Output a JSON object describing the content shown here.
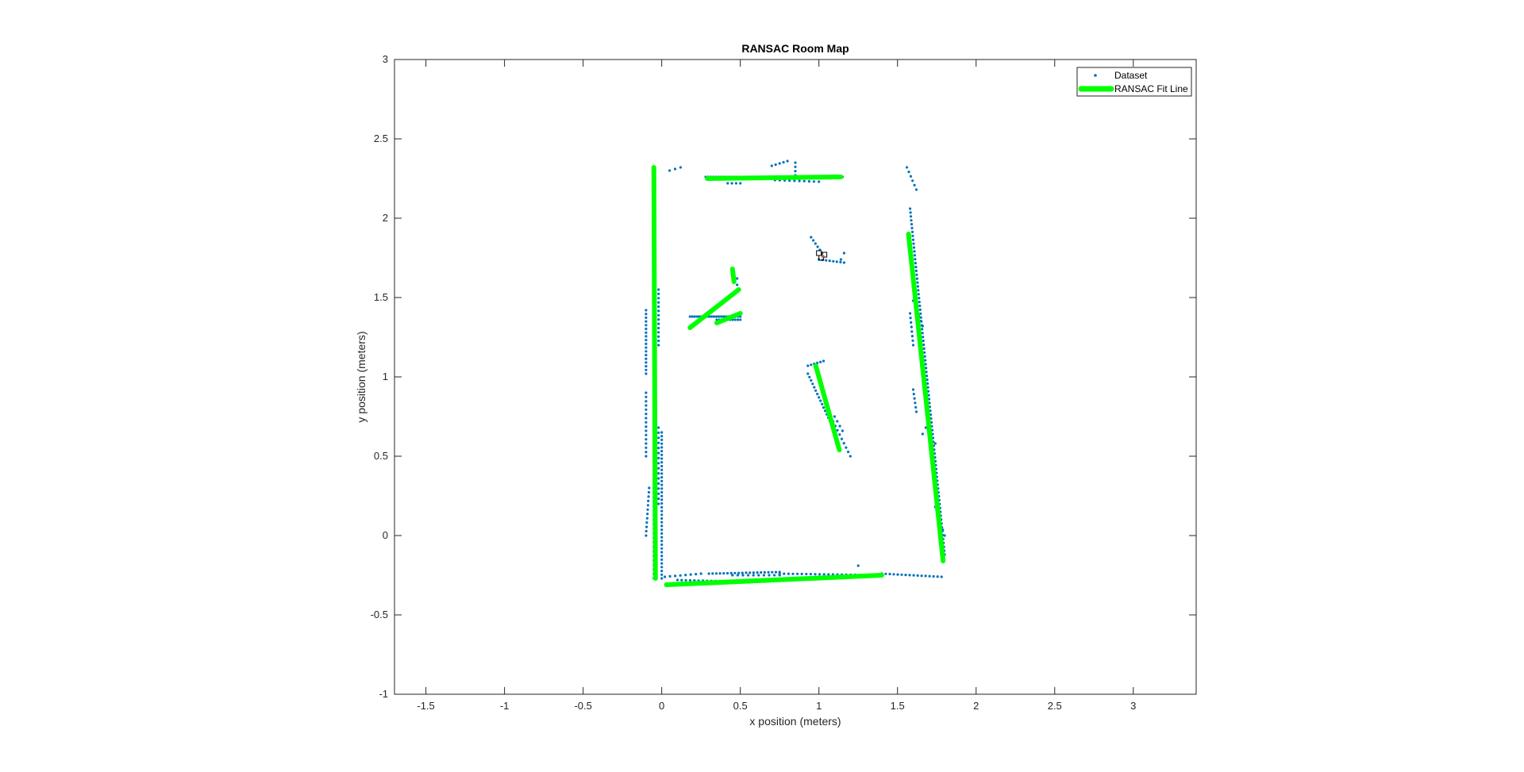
{
  "chart_data": {
    "type": "scatter",
    "title": "RANSAC Room Map",
    "xlabel": "x position (meters)",
    "ylabel": "y position (meters)",
    "xlim": [
      -1.7,
      3.4
    ],
    "ylim": [
      -1,
      3
    ],
    "xticks": [
      -1.5,
      -1,
      -0.5,
      0,
      0.5,
      1,
      1.5,
      2,
      2.5,
      3
    ],
    "yticks": [
      -1,
      -0.5,
      0,
      0.5,
      1,
      1.5,
      2,
      2.5,
      3
    ],
    "xtick_labels": [
      "-1.5",
      "-1",
      "-0.5",
      "0",
      "0.5",
      "1",
      "1.5",
      "2",
      "2.5",
      "3"
    ],
    "ytick_labels": [
      "-1",
      "-0.5",
      "0",
      "0.5",
      "1",
      "1.5",
      "2",
      "2.5",
      "3"
    ],
    "grid": false,
    "legend_position": "top-right",
    "legend": [
      "Dataset",
      "RANSAC Fit Line"
    ],
    "colors": {
      "dataset": "#0072BD",
      "fit_line": "#00FF00",
      "robot": "#000000"
    },
    "dataset_segments": [
      {
        "from": [
          -0.05,
          2.26
        ],
        "to": [
          -0.05,
          -0.27
        ],
        "n": 90
      },
      {
        "from": [
          -0.1,
          1.42
        ],
        "to": [
          -0.1,
          1.02
        ],
        "n": 18
      },
      {
        "from": [
          -0.1,
          0.9
        ],
        "to": [
          -0.1,
          0.5
        ],
        "n": 16
      },
      {
        "from": [
          -0.08,
          0.3
        ],
        "to": [
          -0.1,
          0.0
        ],
        "n": 12
      },
      {
        "from": [
          -0.02,
          1.55
        ],
        "to": [
          -0.02,
          1.2
        ],
        "n": 14
      },
      {
        "from": [
          -0.02,
          0.68
        ],
        "to": [
          -0.02,
          0.2
        ],
        "n": 16
      },
      {
        "from": [
          0.0,
          0.65
        ],
        "to": [
          0.0,
          -0.27
        ],
        "n": 40
      },
      {
        "from": [
          0.05,
          2.3
        ],
        "to": [
          0.12,
          2.32
        ],
        "n": 3
      },
      {
        "from": [
          0.28,
          2.26
        ],
        "to": [
          1.15,
          2.26
        ],
        "n": 55
      },
      {
        "from": [
          0.42,
          2.22
        ],
        "to": [
          0.5,
          2.22
        ],
        "n": 4
      },
      {
        "from": [
          0.7,
          2.33
        ],
        "to": [
          0.8,
          2.36
        ],
        "n": 5
      },
      {
        "from": [
          0.72,
          2.24
        ],
        "to": [
          1.0,
          2.23
        ],
        "n": 10
      },
      {
        "from": [
          0.85,
          2.27
        ],
        "to": [
          0.85,
          2.35
        ],
        "n": 4
      },
      {
        "from": [
          0.18,
          1.38
        ],
        "to": [
          0.5,
          1.38
        ],
        "n": 22
      },
      {
        "from": [
          0.35,
          1.36
        ],
        "to": [
          0.5,
          1.36
        ],
        "n": 10
      },
      {
        "from": [
          0.48,
          1.58
        ],
        "to": [
          0.48,
          1.62
        ],
        "n": 2
      },
      {
        "from": [
          0.95,
          1.88
        ],
        "to": [
          1.02,
          1.78
        ],
        "n": 6
      },
      {
        "from": [
          1.0,
          1.74
        ],
        "to": [
          1.16,
          1.72
        ],
        "n": 8
      },
      {
        "from": [
          1.14,
          1.74
        ],
        "to": [
          1.16,
          1.78
        ],
        "n": 2
      },
      {
        "from": [
          0.93,
          1.07
        ],
        "to": [
          1.03,
          1.1
        ],
        "n": 6
      },
      {
        "from": [
          0.93,
          1.02
        ],
        "to": [
          1.08,
          0.7
        ],
        "n": 16
      },
      {
        "from": [
          1.05,
          0.8
        ],
        "to": [
          1.2,
          0.5
        ],
        "n": 12
      },
      {
        "from": [
          1.1,
          0.75
        ],
        "to": [
          1.15,
          0.66
        ],
        "n": 4
      },
      {
        "from": [
          0.02,
          -0.26
        ],
        "to": [
          0.25,
          -0.24
        ],
        "n": 8
      },
      {
        "from": [
          0.1,
          -0.28
        ],
        "to": [
          0.45,
          -0.29
        ],
        "n": 14
      },
      {
        "from": [
          0.3,
          -0.24
        ],
        "to": [
          0.75,
          -0.23
        ],
        "n": 20
      },
      {
        "from": [
          0.45,
          -0.25
        ],
        "to": [
          0.75,
          -0.25
        ],
        "n": 10
      },
      {
        "from": [
          0.75,
          -0.24
        ],
        "to": [
          1.4,
          -0.25
        ],
        "n": 24
      },
      {
        "from": [
          1.25,
          -0.19
        ],
        "to": [
          1.28,
          -0.19
        ],
        "n": 1
      },
      {
        "from": [
          1.4,
          -0.24
        ],
        "to": [
          1.78,
          -0.26
        ],
        "n": 16
      },
      {
        "from": [
          1.56,
          2.32
        ],
        "to": [
          1.62,
          2.18
        ],
        "n": 6
      },
      {
        "from": [
          1.58,
          2.06
        ],
        "to": [
          1.8,
          -0.12
        ],
        "n": 90
      },
      {
        "from": [
          1.6,
          1.48
        ],
        "to": [
          1.66,
          1.32
        ],
        "n": 6
      },
      {
        "from": [
          1.58,
          1.4
        ],
        "to": [
          1.6,
          1.2
        ],
        "n": 8
      },
      {
        "from": [
          1.6,
          0.92
        ],
        "to": [
          1.62,
          0.78
        ],
        "n": 6
      },
      {
        "from": [
          1.68,
          0.68
        ],
        "to": [
          1.66,
          0.64
        ],
        "n": 2
      },
      {
        "from": [
          1.74,
          0.58
        ],
        "to": [
          1.72,
          0.5
        ],
        "n": 3
      },
      {
        "from": [
          1.74,
          0.18
        ],
        "to": [
          1.8,
          0.0
        ],
        "n": 6
      }
    ],
    "fit_lines": [
      {
        "x": [
          -0.05,
          -0.04
        ],
        "y": [
          2.32,
          -0.27
        ]
      },
      {
        "x": [
          0.29,
          1.14
        ],
        "y": [
          2.25,
          2.26
        ]
      },
      {
        "x": [
          0.03,
          1.4
        ],
        "y": [
          -0.31,
          -0.25
        ]
      },
      {
        "x": [
          1.57,
          1.79
        ],
        "y": [
          1.9,
          -0.16
        ]
      },
      {
        "x": [
          0.98,
          1.13
        ],
        "y": [
          1.07,
          0.54
        ]
      },
      {
        "x": [
          0.18,
          0.49
        ],
        "y": [
          1.31,
          1.55
        ]
      },
      {
        "x": [
          0.35,
          0.5
        ],
        "y": [
          1.34,
          1.4
        ]
      },
      {
        "x": [
          0.45,
          0.46
        ],
        "y": [
          1.68,
          1.6
        ]
      }
    ],
    "robot_marker": {
      "x": 1.02,
      "y": 1.76
    }
  }
}
